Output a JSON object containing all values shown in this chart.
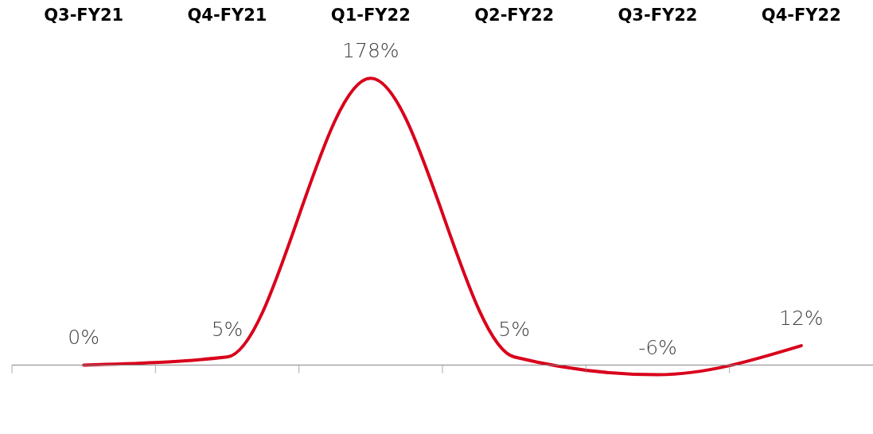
{
  "chart_data": {
    "type": "line",
    "categories": [
      "Q3-FY21",
      "Q4-FY21",
      "Q1-FY22",
      "Q2-FY22",
      "Q3-FY22",
      "Q4-FY22"
    ],
    "color": "#d9001b",
    "values": [
      0,
      5,
      178,
      5,
      -6,
      12
    ],
    "value_labels": [
      "0%",
      "5%",
      "178%",
      "5%",
      "-6%",
      "12%"
    ],
    "marker": "none",
    "line_style": "solid",
    "grid": false,
    "tick_labels": "x"
  }
}
